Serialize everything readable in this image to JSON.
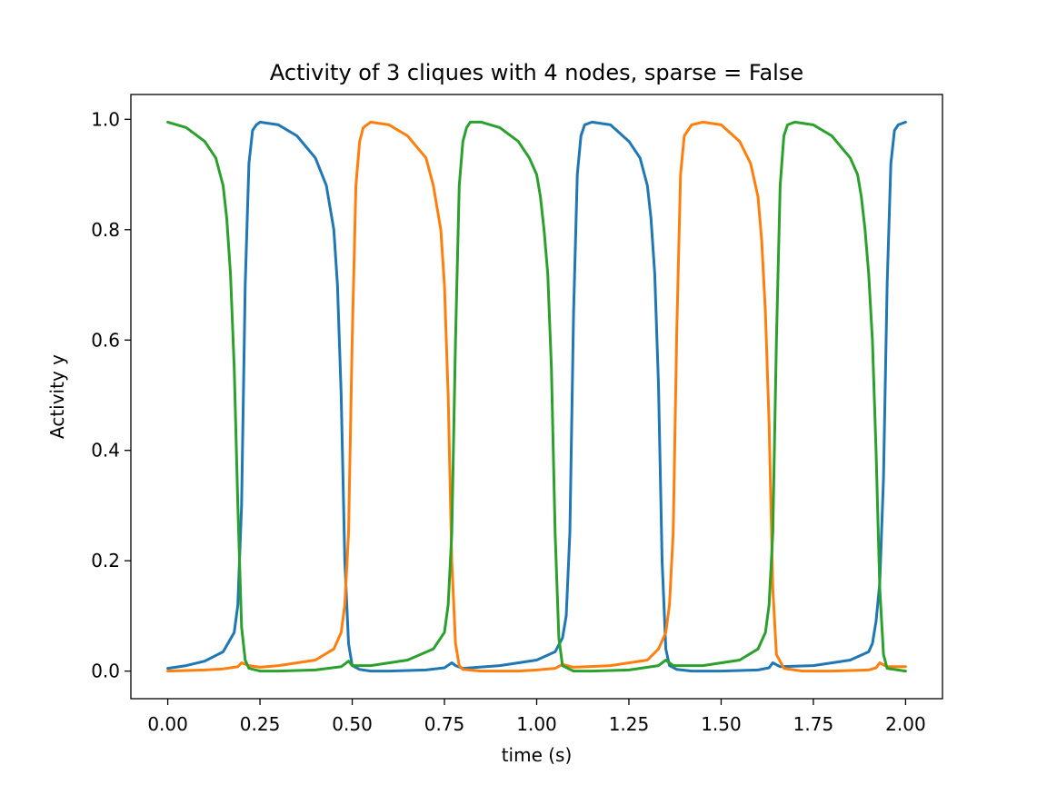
{
  "chart_data": {
    "type": "line",
    "title": "Activity of 3 cliques with 4 nodes, sparse = False",
    "xlabel": "time (s)",
    "ylabel": "Activity y",
    "xlim": [
      -0.1,
      2.1
    ],
    "ylim": [
      -0.05,
      1.045
    ],
    "xticks": [
      0.0,
      0.25,
      0.5,
      0.75,
      1.0,
      1.25,
      1.5,
      1.75,
      2.0
    ],
    "xtick_labels": [
      "0.00",
      "0.25",
      "0.50",
      "0.75",
      "1.00",
      "1.25",
      "1.50",
      "1.75",
      "2.00"
    ],
    "yticks": [
      0.0,
      0.2,
      0.4,
      0.6,
      0.8,
      1.0
    ],
    "ytick_labels": [
      "0.0",
      "0.2",
      "0.4",
      "0.6",
      "0.8",
      "1.0"
    ],
    "grid": false,
    "legend": false,
    "series": [
      {
        "color": "#1f77b4",
        "x": [
          0.0,
          0.05,
          0.1,
          0.15,
          0.18,
          0.19,
          0.2,
          0.21,
          0.22,
          0.23,
          0.24,
          0.25,
          0.3,
          0.35,
          0.4,
          0.43,
          0.45,
          0.46,
          0.47,
          0.48,
          0.49,
          0.5,
          0.52,
          0.55,
          0.6,
          0.7,
          0.75,
          0.77,
          0.78,
          0.8,
          0.9,
          1.0,
          1.05,
          1.07,
          1.08,
          1.09,
          1.1,
          1.11,
          1.12,
          1.13,
          1.15,
          1.2,
          1.25,
          1.28,
          1.3,
          1.31,
          1.32,
          1.33,
          1.34,
          1.35,
          1.36,
          1.38,
          1.42,
          1.5,
          1.6,
          1.63,
          1.64,
          1.66,
          1.75,
          1.85,
          1.9,
          1.91,
          1.92,
          1.93,
          1.94,
          1.95,
          1.96,
          1.97,
          1.98,
          2.0
        ],
        "y": [
          0.005,
          0.01,
          0.018,
          0.035,
          0.07,
          0.12,
          0.3,
          0.7,
          0.92,
          0.98,
          0.99,
          0.995,
          0.99,
          0.97,
          0.93,
          0.88,
          0.8,
          0.7,
          0.5,
          0.2,
          0.05,
          0.01,
          0.003,
          0.0,
          0.0,
          0.002,
          0.006,
          0.015,
          0.01,
          0.005,
          0.01,
          0.02,
          0.035,
          0.06,
          0.1,
          0.25,
          0.65,
          0.9,
          0.97,
          0.99,
          0.995,
          0.99,
          0.96,
          0.93,
          0.88,
          0.82,
          0.72,
          0.52,
          0.2,
          0.04,
          0.01,
          0.003,
          0.0,
          0.0,
          0.002,
          0.006,
          0.015,
          0.008,
          0.01,
          0.02,
          0.035,
          0.05,
          0.09,
          0.16,
          0.35,
          0.7,
          0.92,
          0.98,
          0.99,
          0.995
        ]
      },
      {
        "color": "#ff7f0e",
        "x": [
          0.0,
          0.1,
          0.15,
          0.19,
          0.2,
          0.22,
          0.25,
          0.3,
          0.4,
          0.45,
          0.47,
          0.48,
          0.49,
          0.5,
          0.51,
          0.52,
          0.53,
          0.55,
          0.6,
          0.65,
          0.7,
          0.72,
          0.74,
          0.75,
          0.76,
          0.77,
          0.78,
          0.79,
          0.8,
          0.85,
          0.95,
          1.0,
          1.05,
          1.07,
          1.1,
          1.2,
          1.3,
          1.33,
          1.35,
          1.36,
          1.37,
          1.38,
          1.39,
          1.4,
          1.42,
          1.45,
          1.5,
          1.55,
          1.58,
          1.6,
          1.61,
          1.62,
          1.63,
          1.64,
          1.65,
          1.67,
          1.72,
          1.8,
          1.9,
          1.92,
          1.93,
          1.95,
          2.0
        ],
        "y": [
          0.0,
          0.002,
          0.004,
          0.008,
          0.015,
          0.01,
          0.007,
          0.01,
          0.02,
          0.04,
          0.07,
          0.12,
          0.25,
          0.6,
          0.88,
          0.96,
          0.985,
          0.995,
          0.99,
          0.97,
          0.93,
          0.88,
          0.8,
          0.7,
          0.5,
          0.2,
          0.05,
          0.01,
          0.003,
          0.0,
          0.0,
          0.002,
          0.005,
          0.012,
          0.007,
          0.01,
          0.02,
          0.04,
          0.07,
          0.12,
          0.25,
          0.62,
          0.9,
          0.97,
          0.99,
          0.995,
          0.99,
          0.96,
          0.92,
          0.86,
          0.78,
          0.65,
          0.45,
          0.15,
          0.03,
          0.005,
          0.0,
          0.0,
          0.002,
          0.006,
          0.015,
          0.008,
          0.008
        ]
      },
      {
        "color": "#2ca02c",
        "x": [
          0.0,
          0.05,
          0.1,
          0.13,
          0.15,
          0.16,
          0.17,
          0.18,
          0.19,
          0.2,
          0.21,
          0.22,
          0.25,
          0.3,
          0.4,
          0.47,
          0.49,
          0.5,
          0.55,
          0.65,
          0.72,
          0.75,
          0.76,
          0.77,
          0.78,
          0.79,
          0.8,
          0.81,
          0.82,
          0.85,
          0.9,
          0.95,
          0.98,
          1.0,
          1.01,
          1.02,
          1.03,
          1.04,
          1.05,
          1.06,
          1.07,
          1.1,
          1.15,
          1.25,
          1.33,
          1.35,
          1.37,
          1.45,
          1.55,
          1.6,
          1.62,
          1.63,
          1.64,
          1.65,
          1.66,
          1.67,
          1.68,
          1.7,
          1.75,
          1.8,
          1.85,
          1.87,
          1.88,
          1.89,
          1.9,
          1.91,
          1.92,
          1.93,
          1.94,
          1.95,
          2.0
        ],
        "y": [
          0.995,
          0.985,
          0.96,
          0.93,
          0.88,
          0.82,
          0.72,
          0.55,
          0.3,
          0.08,
          0.02,
          0.005,
          0.0,
          0.0,
          0.002,
          0.008,
          0.018,
          0.01,
          0.01,
          0.02,
          0.04,
          0.07,
          0.12,
          0.25,
          0.6,
          0.88,
          0.96,
          0.985,
          0.995,
          0.995,
          0.985,
          0.96,
          0.93,
          0.9,
          0.86,
          0.8,
          0.72,
          0.55,
          0.25,
          0.06,
          0.01,
          0.0,
          0.0,
          0.002,
          0.01,
          0.02,
          0.01,
          0.01,
          0.02,
          0.04,
          0.07,
          0.12,
          0.25,
          0.6,
          0.88,
          0.97,
          0.99,
          0.995,
          0.99,
          0.97,
          0.93,
          0.9,
          0.86,
          0.8,
          0.72,
          0.6,
          0.4,
          0.15,
          0.03,
          0.005,
          0.0
        ]
      }
    ]
  }
}
